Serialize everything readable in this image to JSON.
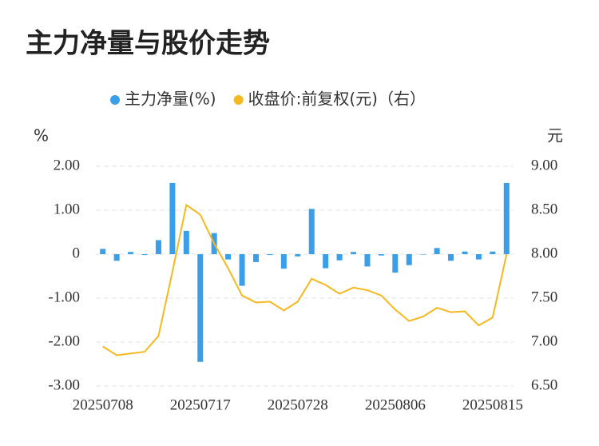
{
  "chart_data": {
    "type": "bar_line",
    "title": "主力净量与股价走势",
    "y_label": "%",
    "y2_label": "元",
    "categories": [
      "20250708",
      null,
      null,
      null,
      null,
      null,
      null,
      "20250717",
      null,
      null,
      null,
      null,
      null,
      null,
      "20250728",
      null,
      null,
      null,
      null,
      null,
      null,
      "20250806",
      null,
      null,
      null,
      null,
      null,
      null,
      "20250815",
      null
    ],
    "series": [
      {
        "name": "主力净量(%)",
        "type": "bar",
        "color": "#3a9ee8",
        "values": [
          0.12,
          -0.15,
          0.05,
          -0.02,
          0.32,
          1.62,
          0.53,
          -2.45,
          0.48,
          -0.12,
          -0.72,
          -0.18,
          -0.02,
          -0.33,
          -0.05,
          1.03,
          -0.32,
          -0.14,
          0.05,
          -0.28,
          -0.03,
          -0.42,
          -0.25,
          -0.01,
          0.14,
          -0.15,
          0.06,
          -0.12,
          0.06,
          1.62
        ]
      },
      {
        "name": "收盘价:前复权(元)（右）",
        "type": "line",
        "axis": "y2",
        "color": "#f5b821",
        "values": [
          6.95,
          6.85,
          6.87,
          6.89,
          7.07,
          7.8,
          8.56,
          8.45,
          8.12,
          7.84,
          7.53,
          7.45,
          7.46,
          7.36,
          7.46,
          7.72,
          7.65,
          7.55,
          7.62,
          7.59,
          7.53,
          7.37,
          7.24,
          7.29,
          7.39,
          7.34,
          7.35,
          7.19,
          7.28,
          8.0
        ]
      }
    ],
    "ylim": [
      -3,
      2
    ],
    "yticks": [
      {
        "value": 2,
        "label": "2.00"
      },
      {
        "value": 1,
        "label": "1.00"
      },
      0,
      {
        "value": -1,
        "label": "-1.00"
      },
      {
        "value": -2,
        "label": "-2.00"
      },
      {
        "value": -3,
        "label": "-3.00"
      }
    ],
    "y2lim": [
      6.5,
      9
    ],
    "y2ticks": [
      {
        "value": 9,
        "label": "9.00"
      },
      {
        "value": 8.5,
        "label": "8.50"
      },
      {
        "value": 8,
        "label": "8.00"
      },
      {
        "value": 7.5,
        "label": "7.50"
      },
      {
        "value": 7,
        "label": "7.00"
      },
      {
        "value": 6.5,
        "label": "6.50"
      }
    ],
    "grid": true,
    "legend": "top"
  }
}
